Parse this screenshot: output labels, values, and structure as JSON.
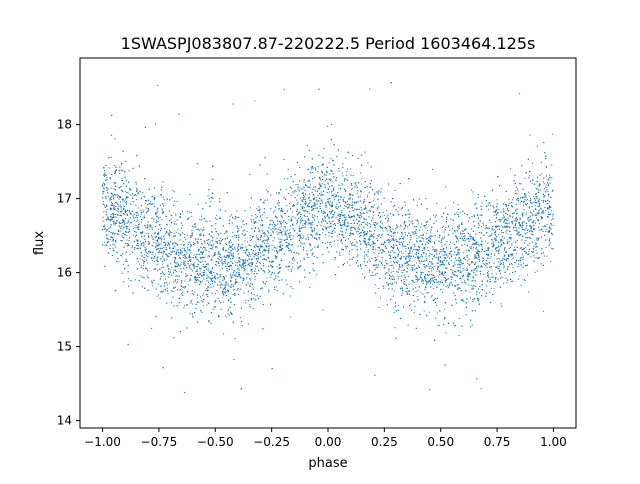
{
  "chart_data": {
    "type": "scatter",
    "title": "1SWASPJ083807.87-220222.5 Period 1603464.125s",
    "xlabel": "phase",
    "ylabel": "flux",
    "xlim": [
      -1.1,
      1.1
    ],
    "ylim": [
      13.9,
      18.9
    ],
    "xticks": [
      -1.0,
      -0.75,
      -0.5,
      -0.25,
      0.0,
      0.25,
      0.5,
      0.75,
      1.0
    ],
    "xtick_labels": [
      "−1.00",
      "−0.75",
      "−0.50",
      "−0.25",
      "0.00",
      "0.25",
      "0.50",
      "0.75",
      "1.00"
    ],
    "yticks": [
      14,
      15,
      16,
      17,
      18
    ],
    "ytick_labels": [
      "14",
      "15",
      "16",
      "17",
      "18"
    ],
    "grid": false,
    "legend": "none",
    "marker_color": "#1f77b4",
    "series": [
      {
        "x_range": [
          -1.0,
          1.0
        ],
        "trend": {
          "phase": [
            -1.0,
            -0.9,
            -0.8,
            -0.7,
            -0.6,
            -0.5,
            -0.4,
            -0.3,
            -0.2,
            -0.1,
            0.0,
            0.1,
            0.2,
            0.3,
            0.4,
            0.5,
            0.6,
            0.7,
            0.8,
            0.9,
            1.0
          ],
          "flux": [
            16.9,
            16.75,
            16.5,
            16.3,
            16.15,
            16.1,
            16.15,
            16.3,
            16.5,
            16.75,
            16.9,
            16.75,
            16.5,
            16.3,
            16.15,
            16.1,
            16.15,
            16.3,
            16.5,
            16.75,
            16.9
          ]
        },
        "core_scatter": 0.35,
        "outlier_range": [
          14.1,
          18.6
        ]
      }
    ]
  }
}
